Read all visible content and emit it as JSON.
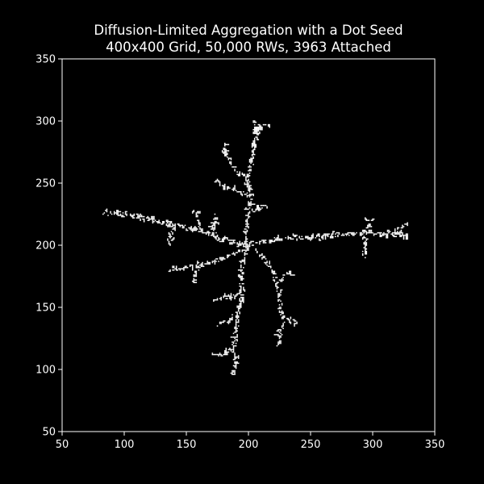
{
  "chart_data": {
    "type": "scatter",
    "title": "Diffusion-Limited Aggregation with a Dot Seed",
    "subtitle": "400x400 Grid, 50,000 RWs, 3963 Attached",
    "xlabel": "",
    "ylabel": "",
    "xlim": [
      50,
      350
    ],
    "ylim": [
      50,
      350
    ],
    "xticks": [
      50,
      100,
      150,
      200,
      250,
      300,
      350
    ],
    "yticks": [
      50,
      100,
      150,
      200,
      250,
      300,
      350
    ],
    "grid": false,
    "legend": "none",
    "colors": {
      "background": "#000000",
      "points": "#ffffff",
      "axes": "#ffffff"
    },
    "seed": [
      200,
      200
    ],
    "attached_count": 3963,
    "branches": [
      {
        "name": "north",
        "points": [
          [
            200,
            200
          ],
          [
            198,
            210
          ],
          [
            200,
            225
          ],
          [
            202,
            240
          ],
          [
            199,
            255
          ],
          [
            203,
            268
          ],
          [
            205,
            282
          ],
          [
            206,
            295
          ],
          [
            204,
            300
          ]
        ]
      },
      {
        "name": "north-left",
        "points": [
          [
            200,
            240
          ],
          [
            192,
            243
          ],
          [
            183,
            247
          ],
          [
            175,
            250
          ]
        ]
      },
      {
        "name": "north-upper-left",
        "points": [
          [
            199,
            255
          ],
          [
            190,
            260
          ],
          [
            185,
            268
          ],
          [
            181,
            275
          ],
          [
            180,
            281
          ]
        ]
      },
      {
        "name": "north-right",
        "points": [
          [
            202,
            228
          ],
          [
            208,
            230
          ],
          [
            214,
            231
          ]
        ]
      },
      {
        "name": "north-top-right",
        "points": [
          [
            205,
            290
          ],
          [
            210,
            295
          ],
          [
            215,
            296
          ]
        ]
      },
      {
        "name": "east",
        "points": [
          [
            200,
            200
          ],
          [
            212,
            203
          ],
          [
            225,
            205
          ],
          [
            238,
            207
          ],
          [
            252,
            206
          ],
          [
            266,
            208
          ],
          [
            280,
            209
          ],
          [
            293,
            211
          ],
          [
            305,
            209
          ],
          [
            318,
            210
          ],
          [
            329,
            208
          ]
        ]
      },
      {
        "name": "east-up",
        "points": [
          [
            293,
            211
          ],
          [
            297,
            216
          ],
          [
            299,
            221
          ]
        ]
      },
      {
        "name": "east-down",
        "points": [
          [
            295,
            205
          ],
          [
            294,
            197
          ],
          [
            293,
            191
          ]
        ]
      },
      {
        "name": "east-far-up",
        "points": [
          [
            320,
            210
          ],
          [
            322,
            215
          ],
          [
            328,
            217
          ]
        ]
      },
      {
        "name": "west",
        "points": [
          [
            200,
            200
          ],
          [
            188,
            203
          ],
          [
            175,
            206
          ],
          [
            162,
            212
          ],
          [
            148,
            215
          ],
          [
            135,
            218
          ],
          [
            120,
            221
          ],
          [
            106,
            224
          ],
          [
            95,
            226
          ],
          [
            84,
            225
          ]
        ]
      },
      {
        "name": "west-up",
        "points": [
          [
            162,
            212
          ],
          [
            160,
            220
          ],
          [
            157,
            228
          ]
        ]
      },
      {
        "name": "west-up-2",
        "points": [
          [
            173,
            207
          ],
          [
            172,
            216
          ],
          [
            174,
            224
          ]
        ]
      },
      {
        "name": "west-down",
        "points": [
          [
            140,
            214
          ],
          [
            137,
            208
          ],
          [
            136,
            202
          ]
        ]
      },
      {
        "name": "southwest",
        "points": [
          [
            200,
            200
          ],
          [
            188,
            193
          ],
          [
            175,
            188
          ],
          [
            162,
            184
          ],
          [
            148,
            181
          ],
          [
            135,
            180
          ]
        ]
      },
      {
        "name": "southwest-down",
        "points": [
          [
            160,
            183
          ],
          [
            158,
            176
          ],
          [
            157,
            170
          ]
        ]
      },
      {
        "name": "south",
        "points": [
          [
            200,
            200
          ],
          [
            196,
            188
          ],
          [
            194,
            175
          ],
          [
            195,
            160
          ],
          [
            192,
            145
          ],
          [
            190,
            130
          ],
          [
            188,
            118
          ],
          [
            190,
            105
          ],
          [
            188,
            95
          ]
        ]
      },
      {
        "name": "south-left",
        "points": [
          [
            192,
            145
          ],
          [
            184,
            140
          ],
          [
            176,
            136
          ]
        ]
      },
      {
        "name": "south-left-2",
        "points": [
          [
            192,
            160
          ],
          [
            184,
            158
          ],
          [
            176,
            156
          ]
        ]
      },
      {
        "name": "south-lower-left",
        "points": [
          [
            186,
            116
          ],
          [
            180,
            113
          ],
          [
            173,
            111
          ]
        ]
      },
      {
        "name": "southeast",
        "points": [
          [
            205,
            196
          ],
          [
            214,
            188
          ],
          [
            220,
            178
          ],
          [
            224,
            165
          ],
          [
            226,
            152
          ],
          [
            228,
            140
          ],
          [
            226,
            128
          ],
          [
            224,
            120
          ]
        ]
      },
      {
        "name": "southeast-right",
        "points": [
          [
            224,
            170
          ],
          [
            230,
            176
          ],
          [
            236,
            177
          ]
        ]
      },
      {
        "name": "southeast-right-2",
        "points": [
          [
            228,
            142
          ],
          [
            234,
            140
          ],
          [
            239,
            139
          ]
        ]
      }
    ]
  }
}
